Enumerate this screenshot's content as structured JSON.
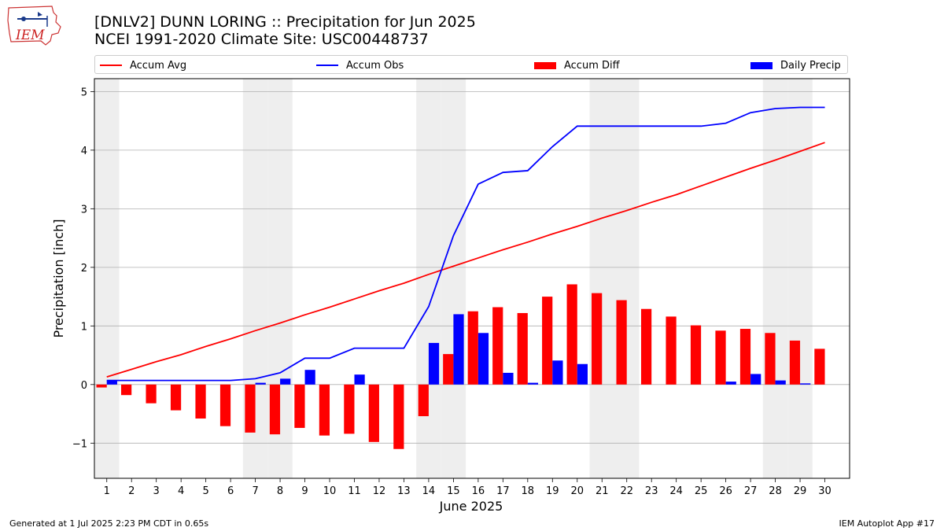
{
  "header": {
    "title_line1": "[DNLV2] DUNN LORING :: Precipitation for Jun 2025",
    "title_line2": "NCEI 1991-2020 Climate Site: USC00448737",
    "logo_text": "IEM"
  },
  "legend": {
    "items": [
      {
        "label": "Accum Avg",
        "kind": "line",
        "color": "#ff0000"
      },
      {
        "label": "Accum Obs",
        "kind": "line",
        "color": "#0000ff"
      },
      {
        "label": "Accum Diff",
        "kind": "bar",
        "color": "#ff0000"
      },
      {
        "label": "Daily Precip",
        "kind": "bar",
        "color": "#0000ff"
      }
    ],
    "placement": "top"
  },
  "footer": {
    "left": "Generated at 1 Jul 2025 2:23 PM CDT in 0.65s",
    "right": "IEM Autoplot App #17"
  },
  "chart_data": {
    "type": "bar",
    "title": "[DNLV2] DUNN LORING :: Precipitation for Jun 2025",
    "subtitle": "NCEI 1991-2020 Climate Site: USC00448737",
    "xlabel": "June 2025",
    "ylabel": "Precipitation [inch]",
    "ylim": [
      -1.6,
      5.22
    ],
    "yticks": [
      -1,
      0,
      1,
      2,
      3,
      4,
      5
    ],
    "categories": [
      1,
      2,
      3,
      4,
      5,
      6,
      7,
      8,
      9,
      10,
      11,
      12,
      13,
      14,
      15,
      16,
      17,
      18,
      19,
      20,
      21,
      22,
      23,
      24,
      25,
      26,
      27,
      28,
      29,
      30
    ],
    "weekend_shading_days": [
      1,
      7,
      8,
      14,
      15,
      21,
      22,
      28,
      29
    ],
    "grid": "horizontal",
    "colors": {
      "avg": "#ff0000",
      "obs": "#0000ff",
      "shade": "#eeeeee",
      "grid": "#b0b0b0"
    },
    "series": [
      {
        "name": "Accum Avg",
        "kind": "line",
        "color": "#ff0000",
        "values": [
          0.13,
          0.26,
          0.39,
          0.51,
          0.65,
          0.78,
          0.92,
          1.05,
          1.19,
          1.32,
          1.46,
          1.6,
          1.73,
          1.88,
          2.02,
          2.16,
          2.3,
          2.43,
          2.57,
          2.7,
          2.84,
          2.97,
          3.11,
          3.24,
          3.39,
          3.54,
          3.69,
          3.83,
          3.98,
          4.13
        ]
      },
      {
        "name": "Accum Obs",
        "kind": "line",
        "color": "#0000ff",
        "values": [
          0.07,
          0.07,
          0.07,
          0.07,
          0.07,
          0.07,
          0.1,
          0.2,
          0.45,
          0.45,
          0.62,
          0.62,
          0.62,
          1.33,
          2.54,
          3.42,
          3.62,
          3.65,
          4.06,
          4.41,
          4.41,
          4.41,
          4.41,
          4.41,
          4.41,
          4.46,
          4.64,
          4.71,
          4.73,
          4.73
        ]
      },
      {
        "name": "Accum Diff",
        "kind": "bar",
        "color": "#ff0000",
        "values": [
          -0.05,
          -0.18,
          -0.32,
          -0.44,
          -0.58,
          -0.71,
          -0.82,
          -0.85,
          -0.74,
          -0.87,
          -0.84,
          -0.98,
          -1.1,
          -0.54,
          0.52,
          1.25,
          1.32,
          1.22,
          1.5,
          1.71,
          1.56,
          1.44,
          1.29,
          1.16,
          1.01,
          0.92,
          0.95,
          0.88,
          0.75,
          0.61
        ]
      },
      {
        "name": "Daily Precip",
        "kind": "bar",
        "color": "#0000ff",
        "values": [
          0.07,
          0.0,
          0.0,
          0.0,
          0.0,
          0.0,
          0.03,
          0.1,
          0.25,
          0.0,
          0.17,
          0.0,
          0.0,
          0.71,
          1.2,
          0.88,
          0.2,
          0.03,
          0.41,
          0.35,
          0.0,
          0.0,
          0.0,
          0.0,
          0.0,
          0.05,
          0.18,
          0.07,
          0.02,
          0.0
        ]
      }
    ]
  }
}
